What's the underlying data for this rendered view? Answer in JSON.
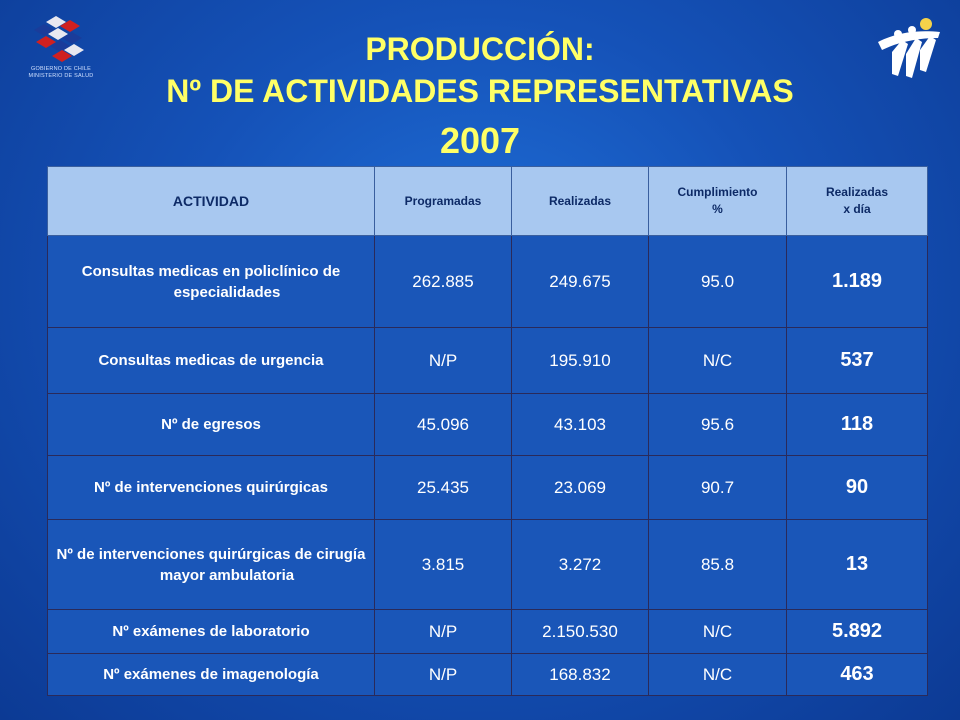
{
  "header": {
    "title_line1": "PRODUCCIÓN:",
    "title_line2": "Nº DE ACTIVIDADES REPRESENTATIVAS",
    "title_line3": "2007",
    "logo_left_caption_1": "GOBIERNO DE CHILE",
    "logo_left_caption_2": "MINISTERIO DE SALUD"
  },
  "colors": {
    "title": "#ffff66",
    "header_row_bg": "#a8c8f0",
    "body_row_bg": "#1a56b8",
    "background": "#1552b8"
  },
  "icons": {
    "left_logo": "gobierno-de-chile-logo-icon",
    "right_logo": "hospital-figures-logo-icon"
  },
  "table": {
    "headers": {
      "actividad": "ACTIVIDAD",
      "programadas": "Programadas",
      "realizadas": "Realizadas",
      "cumplimiento_1": "Cumplimiento",
      "cumplimiento_2": "%",
      "por_dia_1": "Realizadas",
      "por_dia_2": "x día"
    },
    "rows": [
      {
        "actividad": "Consultas medicas en policlínico de especialidades",
        "programadas": "262.885",
        "realizadas": "249.675",
        "cumplimiento": "95.0",
        "por_dia": "1.189"
      },
      {
        "actividad": "Consultas medicas de urgencia",
        "programadas": "N/P",
        "realizadas": "195.910",
        "cumplimiento": "N/C",
        "por_dia": "537"
      },
      {
        "actividad": "Nº de egresos",
        "programadas": "45.096",
        "realizadas": "43.103",
        "cumplimiento": "95.6",
        "por_dia": "118"
      },
      {
        "actividad": "Nº de intervenciones quirúrgicas",
        "programadas": "25.435",
        "realizadas": "23.069",
        "cumplimiento": "90.7",
        "por_dia": "90"
      },
      {
        "actividad": "Nº de intervenciones quirúrgicas de cirugía mayor ambulatoria",
        "programadas": "3.815",
        "realizadas": "3.272",
        "cumplimiento": "85.8",
        "por_dia": "13"
      },
      {
        "actividad": "Nº exámenes de laboratorio",
        "programadas": "N/P",
        "realizadas": "2.150.530",
        "cumplimiento": "N/C",
        "por_dia": "5.892"
      },
      {
        "actividad": "Nº exámenes de imagenología",
        "programadas": "N/P",
        "realizadas": "168.832",
        "cumplimiento": "N/C",
        "por_dia": "463"
      }
    ]
  }
}
